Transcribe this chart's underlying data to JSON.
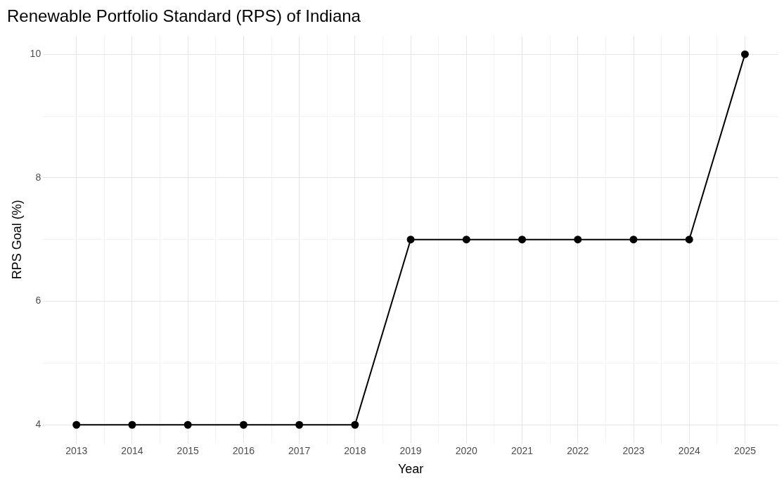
{
  "chart_data": {
    "type": "line",
    "title": "Renewable Portfolio Standard (RPS) of Indiana",
    "xlabel": "Year",
    "ylabel": "RPS Goal (%)",
    "x": [
      2013,
      2014,
      2015,
      2016,
      2017,
      2018,
      2019,
      2020,
      2021,
      2022,
      2023,
      2024,
      2025
    ],
    "series": [
      {
        "color": "#000000",
        "values": [
          4,
          4,
          4,
          4,
          4,
          4,
          7,
          7,
          7,
          7,
          7,
          7,
          10
        ]
      }
    ],
    "xlim": [
      2012.4,
      2025.6
    ],
    "xticks": [
      2013,
      {
        "value": 2013.5,
        "label": null
      },
      2014,
      {
        "value": 2014.5,
        "label": null
      },
      2015,
      {
        "value": 2015.5,
        "label": null
      },
      2016,
      {
        "value": 2016.5,
        "label": null
      },
      2017,
      {
        "value": 2017.5,
        "label": null
      },
      2018,
      {
        "value": 2018.5,
        "label": null
      },
      2019,
      {
        "value": 2019.5,
        "label": null
      },
      2020,
      {
        "value": 2020.5,
        "label": null
      },
      2021,
      {
        "value": 2021.5,
        "label": null
      },
      2022,
      {
        "value": 2022.5,
        "label": null
      },
      2023,
      {
        "value": 2023.5,
        "label": null
      },
      2024,
      {
        "value": 2024.5,
        "label": null
      },
      2025
    ],
    "ylim": [
      3.7,
      10.3
    ],
    "yticks": [
      4,
      {
        "value": 5,
        "label": null
      },
      6,
      {
        "value": 7,
        "label": null
      },
      8,
      {
        "value": 9,
        "label": null
      },
      10
    ],
    "grid": true,
    "legend": false,
    "marker": "circle",
    "line_style": "solid"
  }
}
